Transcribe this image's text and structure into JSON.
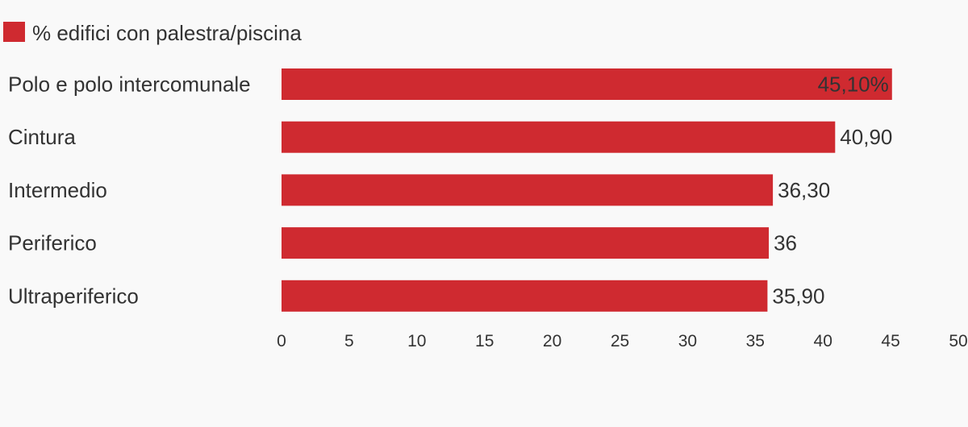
{
  "chart_data": {
    "type": "bar",
    "orientation": "horizontal",
    "legend": {
      "position": "top-left",
      "entries": [
        {
          "label": "% edifici con palestra/piscina",
          "color": "#cf2a30"
        }
      ]
    },
    "series": [
      {
        "name": "% edifici con palestra/piscina",
        "values": [
          45.1,
          40.9,
          36.3,
          36,
          35.9
        ],
        "color": "#cf2a30"
      }
    ],
    "categories": [
      "Polo e polo intercomunale",
      "Cintura",
      "Intermedio",
      "Periferico",
      "Ultraperiferico"
    ],
    "value_labels": [
      "45,10%",
      "40,90",
      "36,30",
      "36",
      "35,90"
    ],
    "xlim": [
      0,
      50
    ],
    "xticks": [
      0,
      5,
      10,
      15,
      20,
      25,
      30,
      35,
      40,
      45,
      50
    ],
    "grid": false
  }
}
